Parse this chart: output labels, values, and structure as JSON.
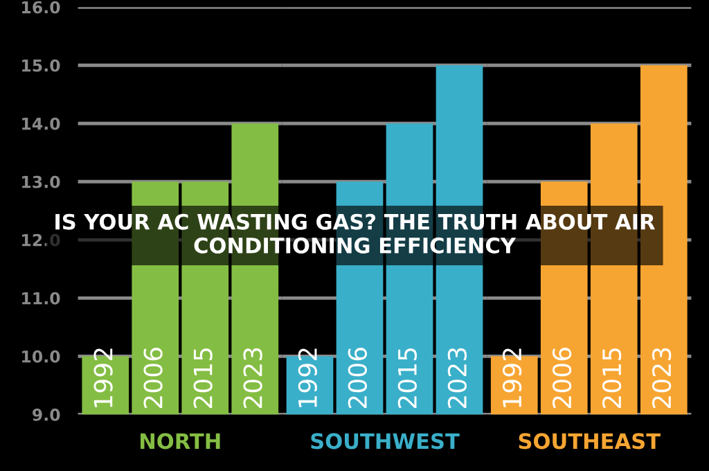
{
  "chart_data": [
    {
      "type": "bar",
      "title": "IS YOUR AC WASTING GAS? THE TRUTH ABOUT AIR CONDITIONING EFFICIENCY",
      "xlabel": "NORTH",
      "categories": [
        "1992",
        "2006",
        "2015",
        "2023"
      ],
      "values": [
        10,
        13,
        13,
        14
      ],
      "color": "#84bd43",
      "ylim": [
        9,
        16
      ],
      "yticks": [
        {
          "value": 9,
          "label": "9.0"
        },
        {
          "value": 10,
          "label": "10.0"
        },
        {
          "value": 11,
          "label": "11.0"
        },
        {
          "value": 12,
          "label": "12.0"
        },
        {
          "value": 13,
          "label": "13.0"
        },
        {
          "value": 14,
          "label": "14.0"
        },
        {
          "value": 15,
          "label": "15.0"
        },
        {
          "value": 16,
          "label": "16.0"
        }
      ],
      "grid": "y"
    },
    {
      "type": "bar",
      "xlabel": "SOUTHWEST",
      "categories": [
        "1992",
        "2006",
        "2015",
        "2023"
      ],
      "values": [
        10,
        13,
        14,
        15
      ],
      "color": "#3aafc9",
      "ylim": [
        9,
        16
      ],
      "grid": "y",
      "tick_labels": "x"
    },
    {
      "type": "bar",
      "xlabel": "SOUTHEAST",
      "categories": [
        "1992",
        "2006",
        "2015",
        "2023"
      ],
      "values": [
        10,
        13,
        14,
        15
      ],
      "color": "#f7a532",
      "ylim": [
        9,
        16
      ],
      "grid": "y",
      "tick_labels": "x"
    }
  ]
}
